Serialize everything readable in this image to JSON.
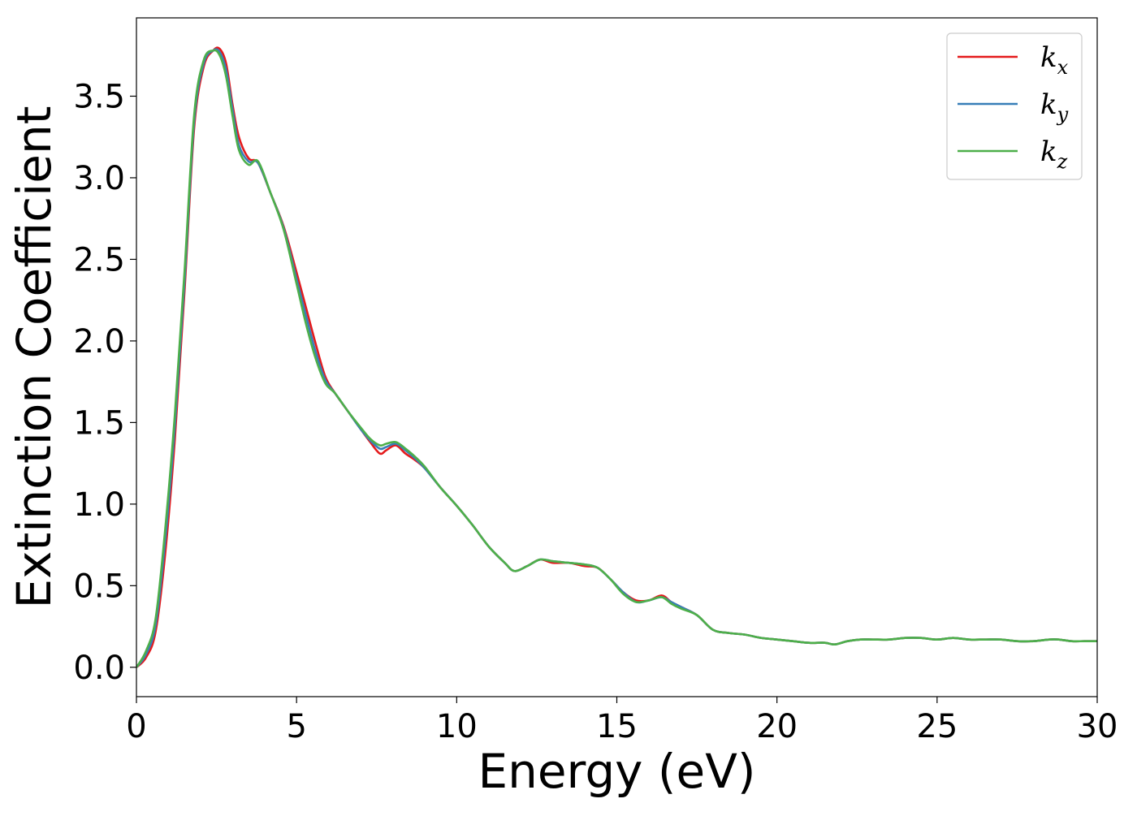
{
  "chart_data": {
    "type": "line",
    "title": "",
    "xlabel": "Energy (eV)",
    "ylabel": "Extinction Coefficient",
    "xlim": [
      0,
      30
    ],
    "ylim": [
      -0.18,
      3.98
    ],
    "xticks": [
      0,
      5,
      10,
      15,
      20,
      25,
      30
    ],
    "xtick_labels": [
      "0",
      "5",
      "10",
      "15",
      "20",
      "25",
      "30"
    ],
    "yticks": [
      0.0,
      0.5,
      1.0,
      1.5,
      2.0,
      2.5,
      3.0,
      3.5
    ],
    "ytick_labels": [
      "0.0",
      "0.5",
      "1.0",
      "1.5",
      "2.0",
      "2.5",
      "3.0",
      "3.5"
    ],
    "grid": false,
    "legend_position": "top-right",
    "series": [
      {
        "name": "k",
        "subscript": "x",
        "color": "#e41a1c",
        "x": [
          0,
          0.3,
          0.6,
          0.9,
          1.2,
          1.5,
          1.8,
          2.1,
          2.4,
          2.6,
          2.8,
          3.0,
          3.2,
          3.5,
          3.8,
          4.2,
          4.6,
          5.0,
          5.3,
          5.6,
          5.9,
          6.2,
          6.6,
          7.0,
          7.3,
          7.6,
          7.8,
          8.1,
          8.4,
          8.7,
          9.0,
          9.5,
          10.0,
          10.5,
          11.0,
          11.5,
          11.8,
          12.2,
          12.6,
          13.0,
          13.5,
          14.0,
          14.4,
          14.8,
          15.2,
          15.6,
          16.0,
          16.4,
          16.7,
          17.0,
          17.5,
          18.0,
          18.5,
          19.0,
          19.5,
          20.0,
          20.5,
          21.0,
          21.5,
          21.8,
          22.2,
          22.6,
          23.0,
          23.5,
          24.0,
          24.5,
          25.0,
          25.5,
          26.0,
          26.5,
          27.0,
          27.5,
          28.0,
          28.5,
          28.8,
          29.2,
          29.6,
          30.0
        ],
        "values": [
          0.0,
          0.06,
          0.22,
          0.7,
          1.4,
          2.3,
          3.3,
          3.68,
          3.78,
          3.79,
          3.7,
          3.45,
          3.25,
          3.12,
          3.09,
          2.9,
          2.7,
          2.42,
          2.2,
          1.98,
          1.78,
          1.68,
          1.57,
          1.46,
          1.38,
          1.31,
          1.33,
          1.36,
          1.31,
          1.27,
          1.22,
          1.1,
          0.99,
          0.87,
          0.74,
          0.64,
          0.59,
          0.62,
          0.66,
          0.64,
          0.64,
          0.62,
          0.61,
          0.54,
          0.46,
          0.41,
          0.41,
          0.44,
          0.4,
          0.37,
          0.32,
          0.23,
          0.21,
          0.2,
          0.18,
          0.17,
          0.16,
          0.15,
          0.15,
          0.14,
          0.16,
          0.17,
          0.17,
          0.17,
          0.18,
          0.18,
          0.17,
          0.18,
          0.17,
          0.17,
          0.17,
          0.16,
          0.16,
          0.17,
          0.17,
          0.16,
          0.16,
          0.16
        ]
      },
      {
        "name": "k",
        "subscript": "y",
        "color": "#377eb8",
        "x": [
          0,
          0.3,
          0.6,
          0.9,
          1.2,
          1.5,
          1.8,
          2.1,
          2.4,
          2.6,
          2.8,
          3.0,
          3.2,
          3.5,
          3.8,
          4.2,
          4.6,
          5.0,
          5.3,
          5.6,
          5.9,
          6.2,
          6.6,
          7.0,
          7.3,
          7.6,
          7.8,
          8.1,
          8.4,
          8.7,
          9.0,
          9.5,
          10.0,
          10.5,
          11.0,
          11.5,
          11.8,
          12.2,
          12.6,
          13.0,
          13.5,
          14.0,
          14.4,
          14.8,
          15.2,
          15.6,
          16.0,
          16.4,
          16.7,
          17.0,
          17.5,
          18.0,
          18.5,
          19.0,
          19.5,
          20.0,
          20.5,
          21.0,
          21.5,
          21.8,
          22.2,
          22.6,
          23.0,
          23.5,
          24.0,
          24.5,
          25.0,
          25.5,
          26.0,
          26.5,
          27.0,
          27.5,
          28.0,
          28.5,
          28.8,
          29.2,
          29.6,
          30.0
        ],
        "values": [
          0.0,
          0.08,
          0.26,
          0.78,
          1.48,
          2.36,
          3.34,
          3.7,
          3.78,
          3.77,
          3.66,
          3.42,
          3.2,
          3.1,
          3.09,
          2.9,
          2.69,
          2.38,
          2.15,
          1.93,
          1.76,
          1.68,
          1.57,
          1.46,
          1.39,
          1.34,
          1.35,
          1.37,
          1.33,
          1.28,
          1.22,
          1.1,
          0.99,
          0.87,
          0.74,
          0.64,
          0.59,
          0.62,
          0.66,
          0.65,
          0.64,
          0.63,
          0.61,
          0.54,
          0.46,
          0.4,
          0.41,
          0.43,
          0.4,
          0.37,
          0.32,
          0.23,
          0.21,
          0.2,
          0.18,
          0.17,
          0.16,
          0.15,
          0.15,
          0.14,
          0.16,
          0.17,
          0.17,
          0.17,
          0.18,
          0.18,
          0.17,
          0.18,
          0.17,
          0.17,
          0.17,
          0.16,
          0.16,
          0.17,
          0.17,
          0.16,
          0.16,
          0.16
        ]
      },
      {
        "name": "k",
        "subscript": "z",
        "color": "#4daf4a",
        "x": [
          0,
          0.3,
          0.6,
          0.9,
          1.2,
          1.5,
          1.8,
          2.1,
          2.4,
          2.6,
          2.8,
          3.0,
          3.2,
          3.5,
          3.8,
          4.2,
          4.6,
          5.0,
          5.3,
          5.6,
          5.9,
          6.2,
          6.6,
          7.0,
          7.3,
          7.6,
          7.8,
          8.1,
          8.4,
          8.7,
          9.0,
          9.5,
          10.0,
          10.5,
          11.0,
          11.5,
          11.8,
          12.2,
          12.6,
          13.0,
          13.5,
          14.0,
          14.4,
          14.8,
          15.2,
          15.6,
          16.0,
          16.4,
          16.7,
          17.0,
          17.5,
          18.0,
          18.5,
          19.0,
          19.5,
          20.0,
          20.5,
          21.0,
          21.5,
          21.8,
          22.2,
          22.6,
          23.0,
          23.5,
          24.0,
          24.5,
          25.0,
          25.5,
          26.0,
          26.5,
          27.0,
          27.5,
          28.0,
          28.5,
          28.8,
          29.2,
          29.6,
          30.0
        ],
        "values": [
          0.0,
          0.1,
          0.3,
          0.85,
          1.55,
          2.42,
          3.38,
          3.72,
          3.78,
          3.75,
          3.62,
          3.38,
          3.17,
          3.08,
          3.1,
          2.9,
          2.68,
          2.35,
          2.1,
          1.89,
          1.74,
          1.68,
          1.57,
          1.47,
          1.4,
          1.36,
          1.37,
          1.38,
          1.34,
          1.29,
          1.23,
          1.1,
          0.99,
          0.87,
          0.74,
          0.64,
          0.59,
          0.62,
          0.66,
          0.65,
          0.64,
          0.63,
          0.61,
          0.54,
          0.45,
          0.4,
          0.41,
          0.43,
          0.39,
          0.36,
          0.32,
          0.23,
          0.21,
          0.2,
          0.18,
          0.17,
          0.16,
          0.15,
          0.15,
          0.14,
          0.16,
          0.17,
          0.17,
          0.17,
          0.18,
          0.18,
          0.17,
          0.18,
          0.17,
          0.17,
          0.17,
          0.16,
          0.16,
          0.17,
          0.17,
          0.16,
          0.16,
          0.16
        ]
      }
    ]
  }
}
